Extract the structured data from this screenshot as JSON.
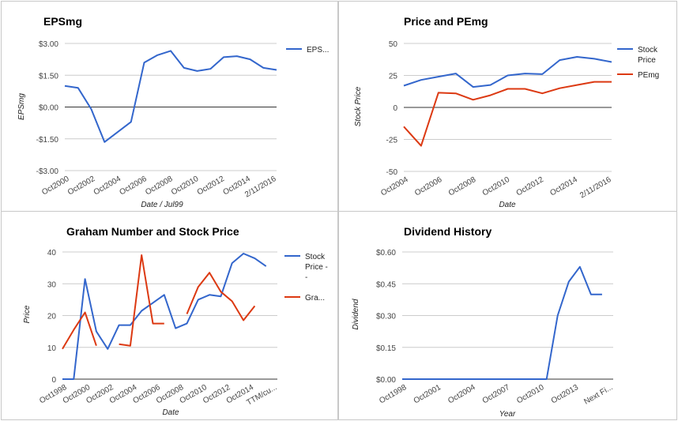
{
  "chart_data": [
    {
      "type": "line",
      "title": "EPSmg",
      "xlabel": "Date / Jul99",
      "ylabel": "EPSmg",
      "ylim": [
        -3,
        3
      ],
      "yticks": [
        "$3.00",
        "$1.50",
        "$0.00",
        "-$1.50",
        "-$3.00"
      ],
      "xticks": [
        "Oct2000",
        "Oct2002",
        "Oct2004",
        "Oct2006",
        "Oct2008",
        "Oct2010",
        "Oct2012",
        "Oct2014",
        "2/11/2016"
      ],
      "x": [
        0,
        1,
        2,
        3,
        5,
        6,
        7,
        8,
        9,
        10,
        11,
        12,
        13,
        14,
        15,
        16
      ],
      "series": [
        {
          "name": "EPS...",
          "color": "#3366cc",
          "values": [
            1.0,
            0.9,
            -0.1,
            -1.65,
            -0.7,
            2.1,
            2.45,
            2.65,
            1.85,
            1.7,
            1.8,
            2.35,
            2.4,
            2.25,
            1.85,
            1.75
          ]
        }
      ],
      "legend": "right",
      "grid": true
    },
    {
      "type": "line",
      "title": "Price and PEmg",
      "xlabel": "Date",
      "ylabel": "Stock Price",
      "ylim": [
        -50,
        50
      ],
      "yticks": [
        "50",
        "25",
        "0",
        "-25",
        "-50"
      ],
      "xticks": [
        "Oct2004",
        "Oct2006",
        "Oct2008",
        "Oct2010",
        "Oct2012",
        "Oct2014",
        "2/11/2016"
      ],
      "x": [
        0,
        1,
        2,
        3,
        4,
        5,
        6,
        7,
        8,
        9,
        10,
        11,
        12
      ],
      "series": [
        {
          "name": "Stock Price",
          "color": "#3366cc",
          "values": [
            17,
            21.5,
            24,
            26.5,
            16,
            17.5,
            25,
            26.5,
            26,
            37,
            39.5,
            38,
            35.5
          ]
        },
        {
          "name": "PEmg",
          "color": "#dc3912",
          "values": [
            -15,
            -30,
            11.5,
            11,
            6,
            9.5,
            14.5,
            14.5,
            11,
            15,
            17.5,
            20,
            20
          ]
        }
      ],
      "legend": "right",
      "grid": true
    },
    {
      "type": "line",
      "title": "Graham Number and Stock Price",
      "xlabel": "Date",
      "ylabel": "Price",
      "ylim": [
        0,
        40
      ],
      "yticks": [
        "40",
        "30",
        "20",
        "10",
        "0"
      ],
      "xticks": [
        "Oct1998",
        "Oct2000",
        "Oct2002",
        "Oct2004",
        "Oct2006",
        "Oct2008",
        "Oct2010",
        "Oct2012",
        "Oct2014",
        "TTM/cu..."
      ],
      "x": [
        0,
        1,
        2,
        3,
        4,
        5,
        6,
        7,
        8,
        9,
        10,
        11,
        12,
        13,
        14,
        15,
        16,
        17,
        18,
        19
      ],
      "series": [
        {
          "name": "Stock Price - -",
          "color": "#3366cc",
          "values": [
            0,
            0,
            31.5,
            15,
            9.5,
            17,
            17,
            21.5,
            24,
            26.5,
            16,
            17.5,
            25,
            26.5,
            26,
            36.5,
            39.5,
            38,
            35.5,
            null
          ]
        },
        {
          "name": "Gra...",
          "color": "#dc3912",
          "values": [
            9.5,
            15.5,
            21,
            10.5,
            null,
            11,
            10.5,
            39,
            17.5,
            17.5,
            null,
            20.5,
            29,
            33.5,
            27.5,
            24.5,
            18.5,
            23,
            null,
            null
          ]
        }
      ],
      "legend": "right",
      "grid": true
    },
    {
      "type": "line",
      "title": "Dividend History",
      "xlabel": "Year",
      "ylabel": "Dividend",
      "ylim": [
        0,
        0.6
      ],
      "yticks": [
        "$0.60",
        "$0.45",
        "$0.30",
        "$0.15",
        "$0.00"
      ],
      "xticks": [
        "Oct1998",
        "Oct2001",
        "Oct2004",
        "Oct2007",
        "Oct2010",
        "Oct2013",
        "Next Fi..."
      ],
      "x": [
        0,
        1,
        2,
        3,
        4,
        5,
        6,
        7,
        8,
        9,
        10,
        11,
        12,
        13,
        14,
        15,
        16,
        17,
        18,
        19
      ],
      "series": [
        {
          "name": "",
          "color": "#3366cc",
          "values": [
            0,
            0,
            0,
            0,
            0,
            0,
            0,
            0,
            0,
            0,
            0,
            0,
            0,
            0,
            0.3,
            0.46,
            0.53,
            0.4,
            0.4,
            null
          ]
        }
      ],
      "legend": "none",
      "grid": true
    }
  ]
}
